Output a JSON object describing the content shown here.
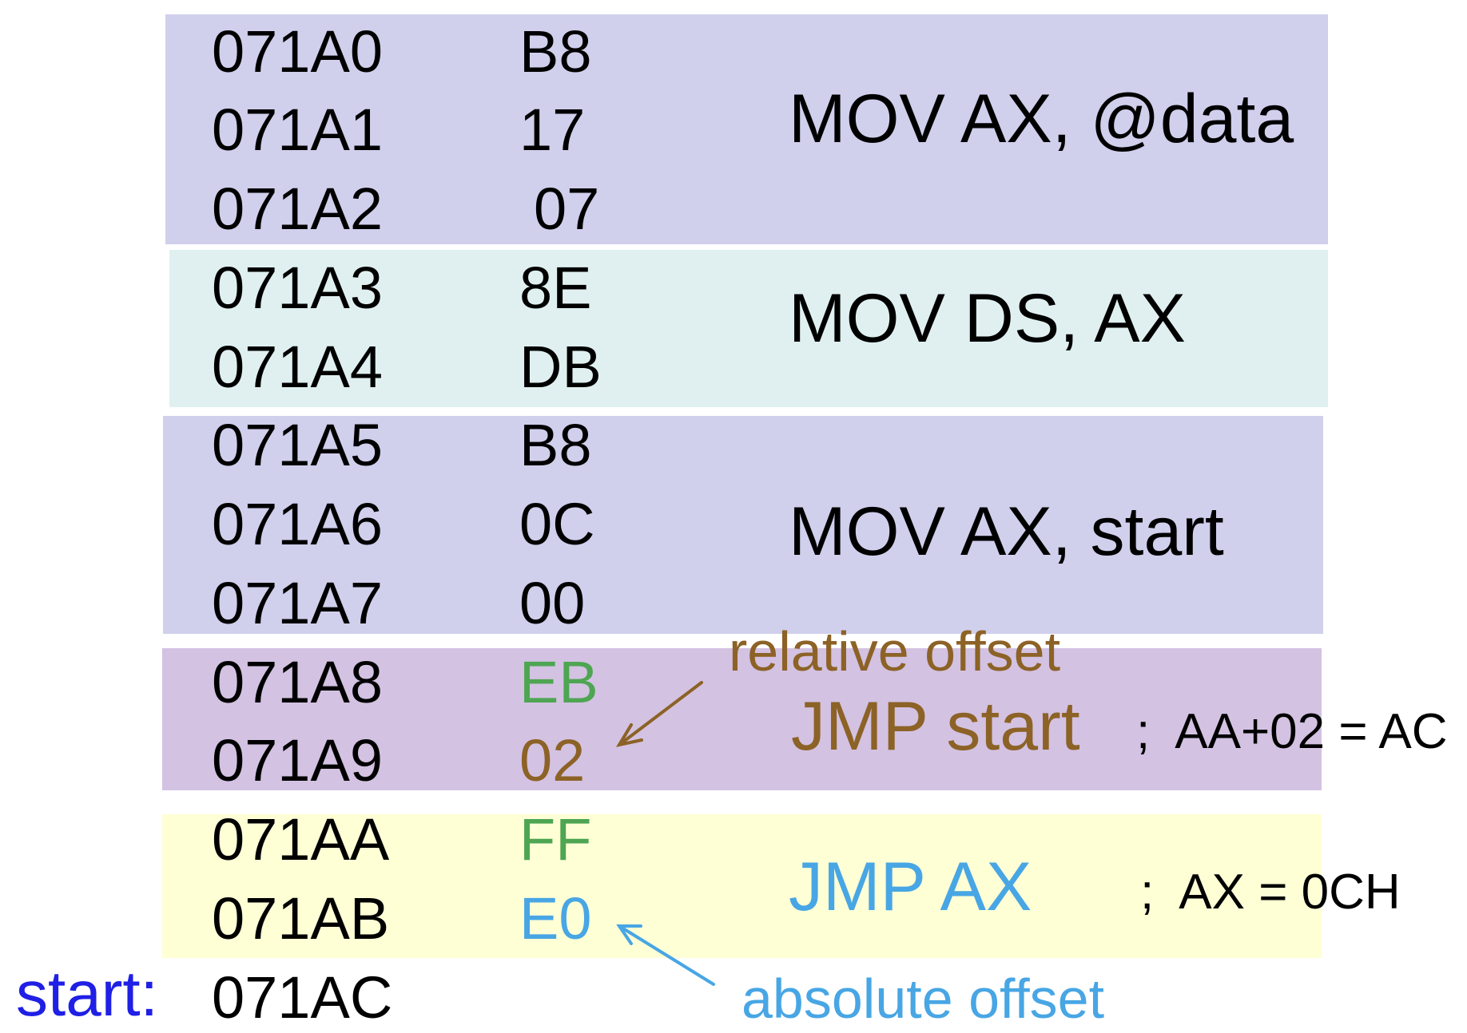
{
  "colors": {
    "block_mov_data": "#d0cfec",
    "block_mov_ds": "#e0f0f0",
    "block_mov_start": "#d0cfec",
    "block_jmp_start": "#d3c2e2",
    "block_jmp_ax": "#ffffd6",
    "opcode_green": "#4ea552",
    "relative_brown": "#8c6226",
    "absolute_blue": "#48a6e4",
    "label_blue": "#1f1fe6",
    "text": "#000000"
  },
  "rows": [
    {
      "address": "071A0",
      "byte": "B8",
      "byte_color": "#000000"
    },
    {
      "address": "071A1",
      "byte": "17",
      "byte_color": "#000000"
    },
    {
      "address": "071A2",
      "byte": "07",
      "byte_color": "#000000"
    },
    {
      "address": "071A3",
      "byte": "8E",
      "byte_color": "#000000"
    },
    {
      "address": "071A4",
      "byte": "DB",
      "byte_color": "#000000"
    },
    {
      "address": "071A5",
      "byte": "B8",
      "byte_color": "#000000"
    },
    {
      "address": "071A6",
      "byte": "0C",
      "byte_color": "#000000"
    },
    {
      "address": "071A7",
      "byte": "00",
      "byte_color": "#000000"
    },
    {
      "address": "071A8",
      "byte": "EB",
      "byte_color": "#4ea552"
    },
    {
      "address": "071A9",
      "byte": "02",
      "byte_color": "#8c6226"
    },
    {
      "address": "071AA",
      "byte": "FF",
      "byte_color": "#4ea552"
    },
    {
      "address": "071AB",
      "byte": "E0",
      "byte_color": "#48a6e4"
    },
    {
      "address": "071AC",
      "byte": "",
      "byte_color": "#000000"
    }
  ],
  "instructions": [
    {
      "text": "MOV AX, @data",
      "color": "#000000"
    },
    {
      "text": "MOV DS, AX",
      "color": "#000000"
    },
    {
      "text": "MOV AX, start",
      "color": "#000000"
    },
    {
      "text": "JMP start",
      "color": "#8c6226"
    },
    {
      "text": "JMP AX",
      "color": "#48a6e4"
    }
  ],
  "comments": {
    "jmp_start": ";  AA+02 = AC",
    "jmp_ax": ";  AX = 0CH"
  },
  "notes": {
    "relative": "relative offset",
    "absolute": "absolute offset"
  },
  "label_start": "start:"
}
